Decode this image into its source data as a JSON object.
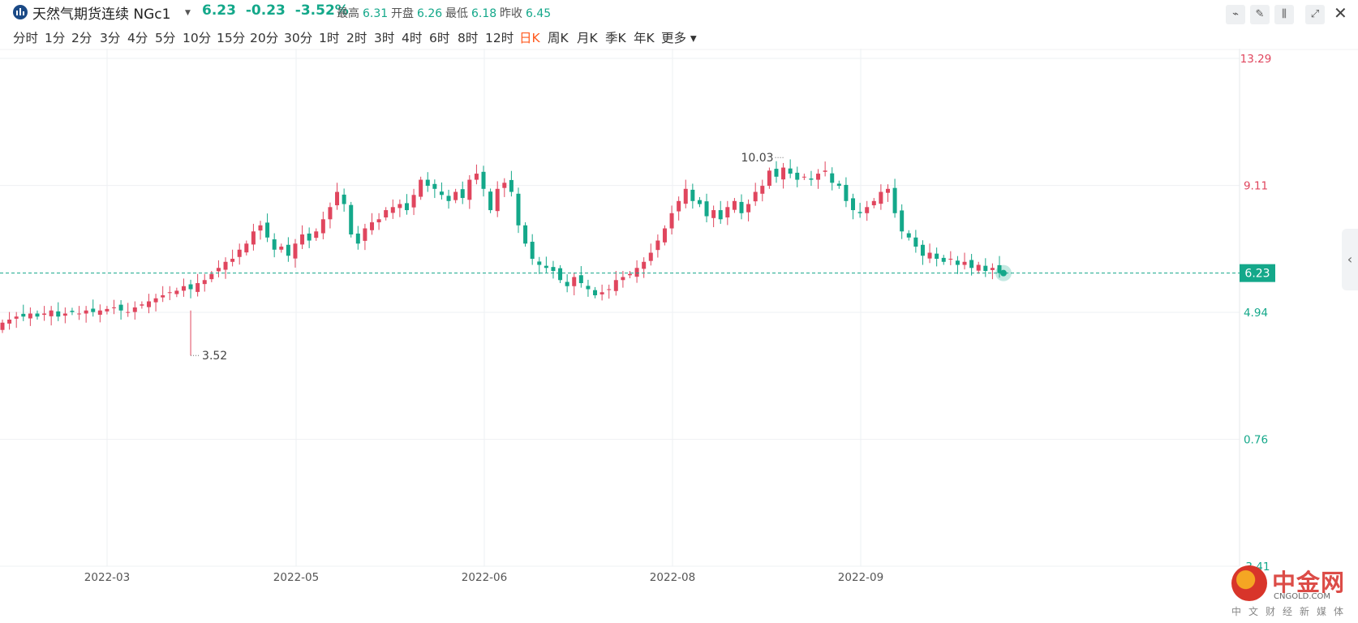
{
  "header": {
    "symbol_name": "天然气期货连续 NGc1",
    "price": "6.23",
    "change": "-0.23",
    "change_pct": "-3.52%",
    "stats": [
      {
        "label": "最高",
        "value": "6.31"
      },
      {
        "label": "开盘",
        "value": "6.26"
      },
      {
        "label": "最低",
        "value": "6.18"
      },
      {
        "label": "昨收",
        "value": "6.45"
      }
    ]
  },
  "periods": [
    "分时",
    "1分",
    "2分",
    "3分",
    "4分",
    "5分",
    "10分",
    "15分",
    "20分",
    "30分",
    "1时",
    "2时",
    "3时",
    "4时",
    "6时",
    "8时",
    "12时",
    "日K",
    "周K",
    "月K",
    "季K",
    "年K",
    "更多"
  ],
  "active_period": "日K",
  "toolbar_icons": [
    "line-tool-icon",
    "draw-pen-icon",
    "candle-style-icon",
    "expand-icon",
    "close-icon"
  ],
  "colors": {
    "up": "#e0465e",
    "down": "#14a88a",
    "up_axis": "#e0465e",
    "down_axis": "#14a88a"
  },
  "watermark": {
    "cn": "中金网",
    "en": "CNGOLD.COM",
    "sub": "中文财经新媒体"
  },
  "chart_data": {
    "type": "candlestick",
    "instrument": "NGc1",
    "y_ticks": [
      "13.29",
      "9.11",
      "4.94",
      "0.76",
      "-3.41"
    ],
    "ylim": [
      -3.41,
      13.29
    ],
    "last_price": "6.23",
    "x_ticks": [
      "2022-03",
      "2022-05",
      "2022-06",
      "2022-08",
      "2022-09"
    ],
    "annotations": [
      {
        "text": "3.52",
        "type": "low_marker"
      },
      {
        "text": "10.03",
        "type": "high_marker"
      }
    ],
    "series_note_close_approx": [
      4.6,
      4.7,
      4.8,
      4.8,
      4.9,
      4.8,
      4.9,
      5.0,
      4.8,
      4.9,
      4.95,
      4.9,
      5.0,
      4.95,
      5.0,
      5.05,
      5.1,
      5.0,
      4.95,
      5.1,
      5.2,
      5.3,
      5.4,
      5.5,
      5.6,
      5.65,
      5.8,
      5.7,
      5.9,
      6.0,
      6.2,
      6.4,
      6.6,
      6.7,
      7.0,
      7.2,
      7.6,
      7.8,
      7.4,
      7.0,
      7.1,
      6.8,
      7.2,
      7.5,
      7.3,
      7.6,
      8.0,
      8.4,
      8.9,
      8.5,
      7.5,
      7.2,
      7.7,
      7.9,
      8.0,
      8.3,
      8.4,
      8.5,
      8.3,
      8.8,
      9.3,
      9.1,
      9.0,
      8.8,
      8.6,
      8.9,
      8.7,
      9.3,
      9.5,
      9.0,
      8.3,
      9.0,
      9.2,
      8.9,
      7.8,
      7.2,
      6.7,
      6.5,
      6.4,
      6.3,
      6.0,
      5.8,
      6.1,
      5.9,
      5.7,
      5.5,
      5.6,
      5.7,
      6.0,
      6.1,
      6.2,
      6.4,
      6.6,
      6.9,
      7.3,
      7.7,
      8.2,
      8.6,
      9.0,
      8.6,
      8.5,
      8.1,
      8.3,
      8.0,
      8.4,
      8.6,
      8.2,
      8.5,
      8.9,
      9.1,
      9.6,
      9.4,
      9.7,
      9.5,
      9.3,
      9.4,
      9.3,
      9.5,
      9.6,
      9.2,
      9.1,
      8.6,
      8.3,
      8.2,
      8.4,
      8.6,
      8.9,
      9.0,
      8.2,
      7.6,
      7.4,
      7.1,
      6.8,
      6.9,
      6.7,
      6.6,
      6.7,
      6.5,
      6.6,
      6.4,
      6.5,
      6.3,
      6.4,
      6.23
    ]
  }
}
